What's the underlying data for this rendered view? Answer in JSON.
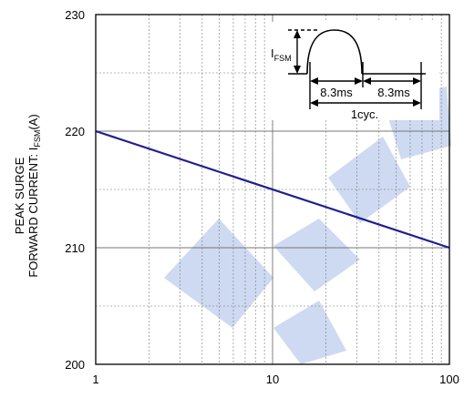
{
  "chart_data": {
    "type": "line",
    "title": "",
    "ylabel": {
      "line1": "PEAK SURGE",
      "line2_prefix": "FORWARD CURRENT: I",
      "line2_sub": "FSM",
      "line2_suffix": "(A)"
    },
    "xlabel": "",
    "xscale": "log",
    "xlim": [
      1,
      100
    ],
    "ylim": [
      200,
      230
    ],
    "xticks": [
      1,
      10,
      100
    ],
    "yticks": [
      200,
      210,
      220,
      230
    ],
    "xtick_labels": [
      "1",
      "10",
      "100"
    ],
    "ytick_labels": [
      "200",
      "210",
      "220",
      "230"
    ],
    "grid": true,
    "series": [
      {
        "x": [
          1,
          100
        ],
        "y": [
          220,
          210
        ],
        "color": "#1f1f8f"
      }
    ],
    "inset": {
      "ifsm_prefix": "I",
      "ifsm_sub": "FSM",
      "half_cycle_1": "8.3ms",
      "half_cycle_2": "8.3ms",
      "cycle": "1cyc."
    },
    "colors": {
      "line": "#1f1f8f",
      "watermark": "#c6d4ef",
      "grid": "#777777"
    }
  }
}
